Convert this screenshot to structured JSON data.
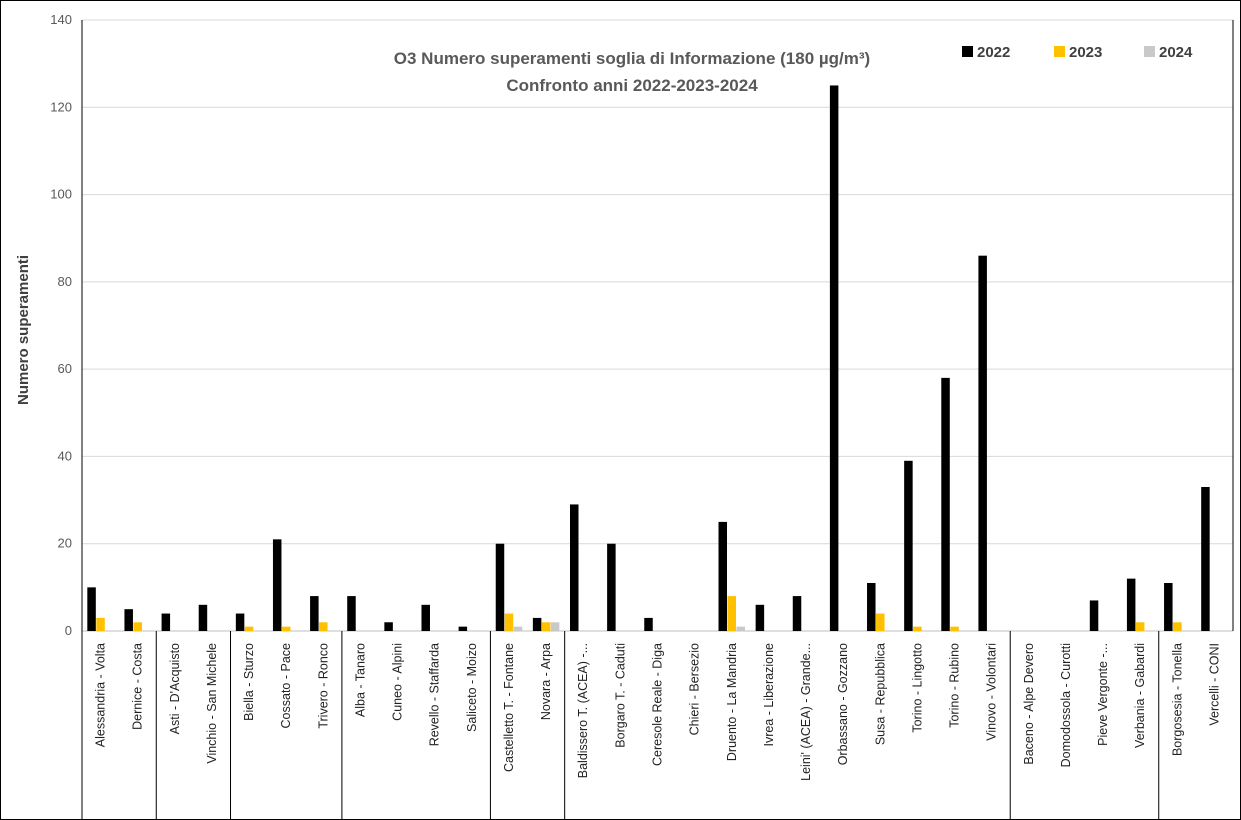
{
  "chart_data": {
    "type": "bar",
    "title": "O3 Numero superamenti soglia di Informazione (180 µg/m³)",
    "subtitle": "Confronto anni 2022-2023-2024",
    "xlabel": "",
    "ylabel": "Numero superamenti",
    "ylim": [
      0,
      140
    ],
    "yticks": [
      0,
      20,
      40,
      60,
      80,
      100,
      120,
      140
    ],
    "grid": true,
    "legend_position": "top-right",
    "categories": [
      "Alessandria - Volta",
      "Dernice - Costa",
      "Asti - D'Acquisto",
      "Vinchio - San Michele",
      "Biella - Sturzo",
      "Cossato - Pace",
      "Trivero - Ronco",
      "Alba - Tanaro",
      "Cuneo - Alpini",
      "Revello - Staffarda",
      "Saliceto - Moizo",
      "Castelletto T. - Fontane",
      "Novara - Arpa",
      "Baldissero T. (ACEA) -...",
      "Borgaro T. - Caduti",
      "Ceresole Reale - Diga",
      "Chieri - Bersezio",
      "Druento - La Mandria",
      "Ivrea - Liberazione",
      "Leini' (ACEA) - Grande...",
      "Orbassano - Gozzano",
      "Susa - Repubblica",
      "Torino - Lingotto",
      "Torino - Rubino",
      "Vinovo - Volontari",
      "Baceno - Alpe Devero",
      "Domodossola - Curotti",
      "Pieve Vergonte -...",
      "Verbania - Gabardi",
      "Borgosesia - Tonella",
      "Vercelli - CONI"
    ],
    "groups": [
      2,
      2,
      3,
      4,
      2,
      12,
      4,
      2
    ],
    "series": [
      {
        "name": "2022",
        "color": "#000000",
        "values": [
          10,
          5,
          4,
          6,
          4,
          21,
          8,
          8,
          2,
          6,
          1,
          20,
          3,
          29,
          20,
          3,
          0,
          25,
          6,
          8,
          125,
          11,
          39,
          58,
          86,
          0,
          0,
          7,
          12,
          11,
          33
        ]
      },
      {
        "name": "2023",
        "color": "#FFC000",
        "values": [
          3,
          2,
          0,
          0,
          1,
          1,
          2,
          0,
          0,
          0,
          0,
          4,
          2,
          0,
          0,
          0,
          0,
          8,
          0,
          0,
          0,
          4,
          1,
          1,
          0,
          0,
          0,
          0,
          2,
          2,
          0
        ]
      },
      {
        "name": "2024",
        "color": "#C9C9C9",
        "values": [
          0,
          0,
          0,
          0,
          0,
          0,
          0,
          0,
          0,
          0,
          0,
          1,
          2,
          0,
          0,
          0,
          0,
          1,
          0,
          0,
          0,
          0,
          0,
          0,
          0,
          0,
          0,
          0,
          0,
          0,
          0
        ]
      }
    ]
  }
}
